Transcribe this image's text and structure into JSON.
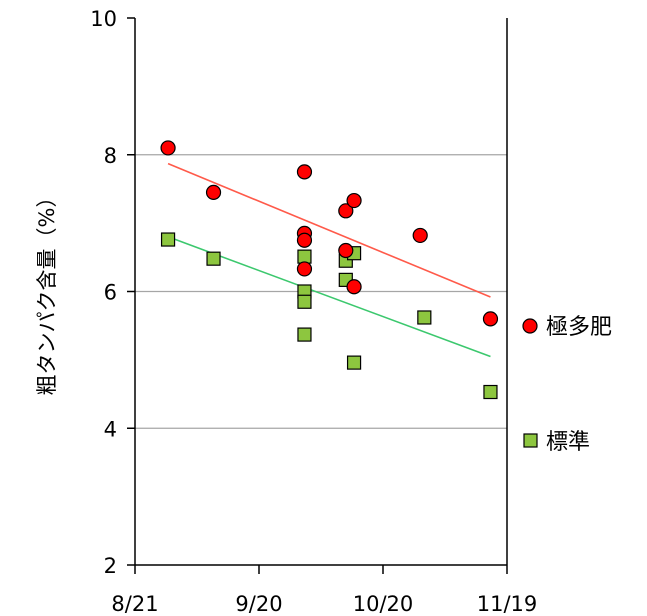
{
  "chart_data": {
    "type": "scatter",
    "title": "",
    "xlabel": "",
    "ylabel": "粗タンパク含量（%）",
    "x_axis": {
      "type": "date",
      "range": [
        "08-21",
        "11-19"
      ],
      "ticks": [
        "08-21",
        "09-20",
        "10-20",
        "11-19"
      ],
      "tick_labels": [
        "8/21",
        "9/20",
        "10/20",
        "11/19"
      ]
    },
    "ylim": [
      2,
      10
    ],
    "yticks": [
      2,
      4,
      6,
      8,
      10
    ],
    "grid": {
      "horizontal": true,
      "lines_at": [
        4,
        6,
        8
      ]
    },
    "legend": {
      "position": "right"
    },
    "series": [
      {
        "name": "極多肥",
        "marker": "circle",
        "color": "#ff0000",
        "trend_color": "#ff5a4a",
        "points": [
          {
            "x": "08-29",
            "y": 8.1
          },
          {
            "x": "09-09",
            "y": 7.45
          },
          {
            "x": "10-01",
            "y": 7.75
          },
          {
            "x": "10-01",
            "y": 6.85
          },
          {
            "x": "10-01",
            "y": 6.75
          },
          {
            "x": "10-01",
            "y": 6.33
          },
          {
            "x": "10-11",
            "y": 7.18
          },
          {
            "x": "10-13",
            "y": 7.33
          },
          {
            "x": "10-11",
            "y": 6.6
          },
          {
            "x": "10-13",
            "y": 6.07
          },
          {
            "x": "10-29",
            "y": 6.82
          },
          {
            "x": "11-15",
            "y": 5.6
          }
        ],
        "trend": [
          {
            "x": "08-29",
            "y": 7.87
          },
          {
            "x": "11-15",
            "y": 5.92
          }
        ]
      },
      {
        "name": "標準",
        "marker": "square",
        "color": "#8dc63f",
        "trend_color": "#3cc86e",
        "points": [
          {
            "x": "08-29",
            "y": 6.76
          },
          {
            "x": "09-09",
            "y": 6.48
          },
          {
            "x": "10-01",
            "y": 6.51
          },
          {
            "x": "10-01",
            "y": 6.0
          },
          {
            "x": "10-01",
            "y": 5.85
          },
          {
            "x": "10-01",
            "y": 5.37
          },
          {
            "x": "10-11",
            "y": 6.45
          },
          {
            "x": "10-13",
            "y": 6.56
          },
          {
            "x": "10-11",
            "y": 6.17
          },
          {
            "x": "10-13",
            "y": 4.96
          },
          {
            "x": "10-30",
            "y": 5.62
          },
          {
            "x": "11-15",
            "y": 4.53
          }
        ],
        "trend": [
          {
            "x": "08-29",
            "y": 6.8
          },
          {
            "x": "11-15",
            "y": 5.05
          }
        ]
      }
    ]
  }
}
